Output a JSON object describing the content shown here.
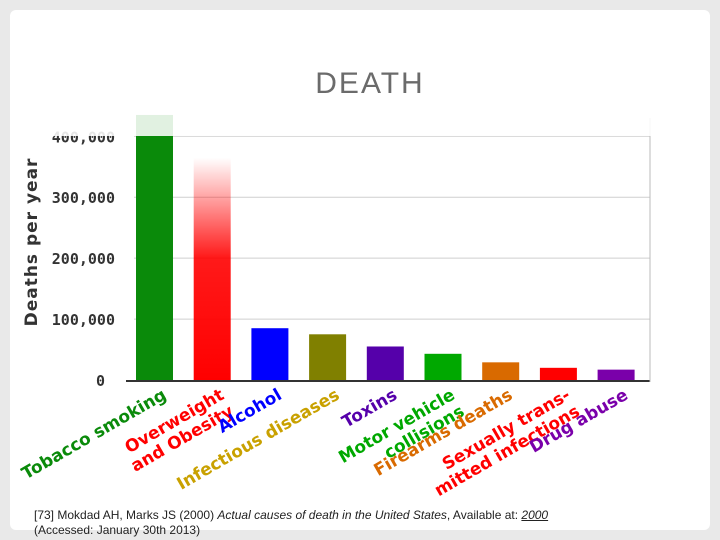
{
  "slide": {
    "title": "DEATH"
  },
  "citation": {
    "prefix": "[73] Mokdad AH, Marks JS (2000) ",
    "work": "Actual causes of death in the United States",
    "middle": ", Available at: ",
    "link": "2000",
    "suffix": " (Accessed: January 30th 2013)"
  },
  "chart_data": {
    "type": "bar",
    "title": "",
    "xlabel": "",
    "ylabel": "Deaths per year",
    "ylim": [
      0,
      430000
    ],
    "y_ticks": [
      0,
      100000,
      200000,
      300000,
      400000
    ],
    "y_tick_labels": [
      "0",
      "100,000",
      "200,000",
      "300,000",
      "400,000"
    ],
    "grid": true,
    "legend": "none",
    "categories": [
      "Tobacco smoking",
      "Overweight and Obesity",
      "Alcohol",
      "Infectious diseases",
      "Toxins",
      "Motor vehicle collisions",
      "Firearms deaths",
      "Sexually transmitted infections",
      "Drug abuse"
    ],
    "category_label_lines": [
      [
        "Tobacco smoking"
      ],
      [
        "Overweight",
        "and Obesity"
      ],
      [
        "Alcohol"
      ],
      [
        "Infectious diseases"
      ],
      [
        "Toxins"
      ],
      [
        "Motor vehicle",
        "collisions"
      ],
      [
        "Firearms deaths"
      ],
      [
        "Sexually trans-",
        "mitted infections"
      ],
      [
        "Drug abuse"
      ]
    ],
    "values": [
      435000,
      365000,
      85000,
      75000,
      55000,
      43000,
      29000,
      20000,
      17000
    ],
    "colors": [
      "#0a8a0a",
      "#ff0000",
      "#0000ff",
      "#808000",
      "#5500aa",
      "#00a800",
      "#d96a00",
      "#ff0000",
      "#7a00aa"
    ],
    "label_colors": [
      "#0a8a0a",
      "#ff0000",
      "#0000ff",
      "#c9a100",
      "#5500aa",
      "#00a800",
      "#d96a00",
      "#ff0000",
      "#7a00aa"
    ],
    "gradient_fade_bar_index": 1
  }
}
